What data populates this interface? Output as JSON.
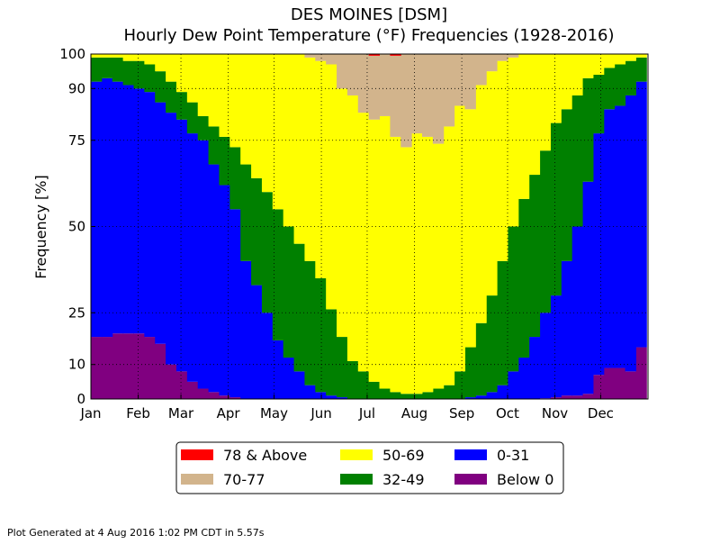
{
  "chart_data": {
    "type": "stacked-step",
    "title": "DES MOINES [DSM]",
    "subtitle": "Hourly Dew Point Temperature (°F) Frequencies (1928-2016)",
    "y_label": "Frequency [%]",
    "footer": "Plot Generated at 4 Aug 2016 1:02 PM CDT in 5.57s",
    "x": [
      1,
      8,
      15,
      22,
      29,
      36,
      43,
      50,
      57,
      64,
      71,
      78,
      85,
      92,
      99,
      106,
      113,
      120,
      127,
      134,
      141,
      148,
      155,
      162,
      169,
      176,
      183,
      190,
      197,
      204,
      211,
      218,
      225,
      232,
      239,
      246,
      253,
      260,
      267,
      274,
      281,
      288,
      295,
      302,
      309,
      316,
      323,
      330,
      337,
      344,
      351,
      358
    ],
    "bin_width": 7,
    "xlim": [
      1,
      366
    ],
    "xticks": [
      {
        "value": 1,
        "label": "Jan"
      },
      {
        "value": 32,
        "label": "Feb"
      },
      {
        "value": 60,
        "label": "Mar"
      },
      {
        "value": 91,
        "label": "Apr"
      },
      {
        "value": 121,
        "label": "May"
      },
      {
        "value": 152,
        "label": "Jun"
      },
      {
        "value": 182,
        "label": "Jul"
      },
      {
        "value": 213,
        "label": "Aug"
      },
      {
        "value": 244,
        "label": "Sep"
      },
      {
        "value": 274,
        "label": "Oct"
      },
      {
        "value": 305,
        "label": "Nov"
      },
      {
        "value": 335,
        "label": "Dec"
      }
    ],
    "ylim": [
      0,
      100
    ],
    "yticks": [
      0,
      10,
      25,
      50,
      75,
      90,
      100
    ],
    "grid": true,
    "series": [
      {
        "name": "78 & Above",
        "color": "#ff0000",
        "values": [
          0,
          0,
          0,
          0,
          0,
          0,
          0,
          0,
          0,
          0,
          0,
          0,
          0,
          0,
          0,
          0,
          0,
          0,
          0,
          0,
          0,
          0,
          0,
          0,
          0,
          0,
          0.5,
          0,
          0.5,
          0,
          0,
          0,
          0,
          0,
          0,
          0,
          0,
          0,
          0,
          0,
          0,
          0,
          0,
          0,
          0,
          0,
          0,
          0,
          0,
          0,
          0,
          0
        ]
      },
      {
        "name": "70-77",
        "color": "#d2b48c",
        "values": [
          0,
          0,
          0,
          0,
          0,
          0,
          0,
          0,
          0,
          0,
          0,
          0,
          0,
          0,
          0,
          0,
          0,
          0,
          0,
          0,
          1,
          2,
          3,
          10,
          12,
          17,
          18.5,
          18,
          23.5,
          27,
          23,
          24,
          26,
          21,
          15,
          16,
          9,
          5,
          2,
          1,
          0,
          0,
          0,
          0,
          0,
          0,
          0,
          0,
          0,
          0,
          0,
          0
        ]
      },
      {
        "name": "50-69",
        "color": "#ffff00",
        "values": [
          1,
          1,
          1,
          2,
          2,
          3,
          5,
          8,
          11,
          14,
          18,
          21,
          24,
          27,
          32,
          36,
          40,
          45,
          50,
          55,
          59,
          63,
          71,
          72,
          77,
          75,
          76,
          79,
          74,
          71.5,
          75.5,
          74,
          71,
          75,
          77,
          69,
          69,
          65,
          58,
          49,
          42,
          35,
          28,
          20,
          16,
          12,
          7,
          6,
          4,
          3,
          2,
          1
        ]
      },
      {
        "name": "32-49",
        "color": "#008000",
        "values": [
          7,
          6,
          7,
          7,
          8,
          8,
          9,
          9,
          8,
          9,
          7,
          11,
          14,
          18,
          28,
          31,
          35,
          38,
          38,
          37,
          36,
          33,
          25,
          17.5,
          11,
          8,
          5,
          3,
          2,
          1.5,
          1.5,
          2,
          3,
          4,
          8,
          14.5,
          21,
          28,
          36,
          42,
          46,
          47,
          47,
          50,
          44,
          38,
          30,
          17,
          12,
          12,
          10,
          7
        ]
      },
      {
        "name": "0-31",
        "color": "#0000ff",
        "values": [
          74,
          75,
          73,
          72,
          71,
          71,
          70,
          73,
          73,
          72,
          72,
          66,
          61,
          54.5,
          40,
          33,
          25,
          17,
          12,
          8,
          4,
          2,
          1,
          0.5,
          0,
          0,
          0,
          0,
          0,
          0,
          0,
          0,
          0,
          0,
          0,
          0.5,
          1,
          2,
          4,
          8,
          12,
          18,
          24.8,
          29.5,
          39,
          49,
          61.5,
          70,
          75,
          76,
          80,
          77
        ]
      },
      {
        "name": "Below 0",
        "color": "#800080",
        "values": [
          18,
          18,
          19,
          19,
          19,
          18,
          16,
          10,
          8,
          5,
          3,
          2,
          1,
          0.5,
          0,
          0,
          0,
          0,
          0,
          0,
          0,
          0,
          0,
          0,
          0,
          0,
          0,
          0,
          0,
          0,
          0,
          0,
          0,
          0,
          0,
          0,
          0,
          0,
          0,
          0,
          0,
          0,
          0.2,
          0.5,
          1,
          1,
          1.5,
          7,
          9,
          9,
          8,
          15
        ]
      }
    ]
  }
}
